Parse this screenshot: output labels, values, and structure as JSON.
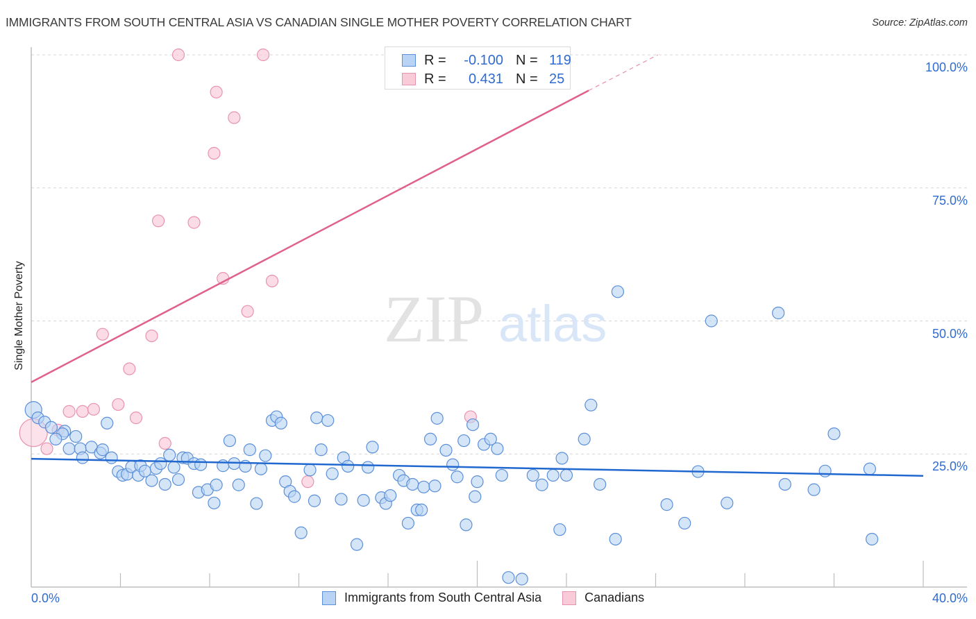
{
  "title": "IMMIGRANTS FROM SOUTH CENTRAL ASIA VS CANADIAN SINGLE MOTHER POVERTY CORRELATION CHART",
  "source": "Source: ZipAtlas.com",
  "watermark": {
    "zip": "ZIP",
    "atlas": "atlas"
  },
  "legend_box": {
    "rows": [
      {
        "r_label": "R =",
        "r_value": "-0.100",
        "n_label": "N =",
        "n_value": "119"
      },
      {
        "r_label": "R =",
        "r_value": "0.431",
        "n_label": "N =",
        "n_value": "25"
      }
    ]
  },
  "bottom_legend": [
    {
      "label": "Immigrants from South Central Asia"
    },
    {
      "label": "Canadians"
    }
  ],
  "colors": {
    "blue_fill": "#b9d3f4",
    "blue_stroke": "#5b8fd9",
    "blue_line": "#2068d0",
    "pink_fill": "#f9cad8",
    "pink_stroke": "#e893ae",
    "pink_line": "#e0608a",
    "axis_label": "#2f6bd0"
  },
  "chart_data": {
    "type": "scatter",
    "title": "IMMIGRANTS FROM SOUTH CENTRAL ASIA VS CANADIAN SINGLE MOTHER POVERTY CORRELATION CHART",
    "xlabel": "",
    "ylabel": "Single Mother Poverty",
    "xlim": [
      0,
      40
    ],
    "ylim": [
      0,
      100
    ],
    "x_tick_labels": [
      "0.0%",
      "40.0%"
    ],
    "y_ticks": [
      25,
      50,
      75,
      100
    ],
    "y_tick_labels": [
      "25.0%",
      "50.0%",
      "75.0%",
      "100.0%"
    ],
    "grid": "horizontal dashed",
    "legend": "bottom-center",
    "series": [
      {
        "name": "Immigrants from South Central Asia",
        "R": -0.1,
        "N": 119,
        "trend": {
          "x0": 0,
          "y0": 24.1,
          "x1": 40,
          "y1": 20.9
        },
        "points": [
          [
            0.1,
            33.3
          ],
          [
            0.3,
            31.8
          ],
          [
            0.6,
            31.0
          ],
          [
            0.9,
            30.0
          ],
          [
            1.5,
            29.3
          ],
          [
            1.4,
            28.8
          ],
          [
            1.1,
            27.8
          ],
          [
            1.7,
            26.0
          ],
          [
            2.0,
            28.3
          ],
          [
            2.2,
            26.0
          ],
          [
            2.3,
            24.3
          ],
          [
            2.7,
            26.3
          ],
          [
            3.1,
            25.2
          ],
          [
            3.2,
            25.8
          ],
          [
            3.4,
            30.8
          ],
          [
            3.6,
            24.3
          ],
          [
            3.9,
            21.7
          ],
          [
            4.1,
            21.0
          ],
          [
            4.3,
            21.2
          ],
          [
            4.5,
            22.6
          ],
          [
            4.8,
            21.0
          ],
          [
            4.9,
            22.8
          ],
          [
            5.1,
            21.8
          ],
          [
            5.4,
            20.0
          ],
          [
            5.6,
            22.3
          ],
          [
            5.8,
            23.2
          ],
          [
            6.0,
            19.3
          ],
          [
            6.2,
            24.8
          ],
          [
            6.4,
            22.5
          ],
          [
            6.6,
            20.2
          ],
          [
            6.8,
            24.3
          ],
          [
            7.0,
            24.2
          ],
          [
            7.3,
            23.2
          ],
          [
            7.5,
            17.8
          ],
          [
            7.6,
            23.0
          ],
          [
            7.9,
            18.3
          ],
          [
            8.2,
            15.8
          ],
          [
            8.3,
            19.2
          ],
          [
            8.6,
            22.8
          ],
          [
            8.9,
            27.5
          ],
          [
            9.1,
            23.2
          ],
          [
            9.3,
            19.2
          ],
          [
            9.6,
            22.7
          ],
          [
            9.8,
            25.8
          ],
          [
            10.1,
            15.7
          ],
          [
            10.3,
            22.2
          ],
          [
            10.5,
            24.7
          ],
          [
            10.8,
            31.3
          ],
          [
            11.0,
            32.0
          ],
          [
            11.2,
            30.8
          ],
          [
            11.4,
            19.8
          ],
          [
            11.6,
            18.0
          ],
          [
            11.8,
            17.0
          ],
          [
            12.1,
            10.2
          ],
          [
            12.5,
            22.0
          ],
          [
            12.7,
            16.2
          ],
          [
            12.8,
            31.8
          ],
          [
            13.0,
            25.8
          ],
          [
            13.3,
            31.3
          ],
          [
            13.5,
            21.3
          ],
          [
            13.9,
            16.5
          ],
          [
            14.0,
            24.3
          ],
          [
            14.2,
            22.7
          ],
          [
            14.6,
            8.0
          ],
          [
            14.9,
            16.3
          ],
          [
            15.1,
            22.5
          ],
          [
            15.3,
            26.3
          ],
          [
            15.7,
            16.8
          ],
          [
            15.9,
            15.7
          ],
          [
            16.1,
            17.2
          ],
          [
            16.5,
            21.0
          ],
          [
            16.7,
            20.0
          ],
          [
            16.9,
            12.0
          ],
          [
            17.1,
            19.3
          ],
          [
            17.3,
            14.5
          ],
          [
            17.5,
            14.5
          ],
          [
            17.6,
            18.8
          ],
          [
            17.9,
            27.8
          ],
          [
            18.1,
            19.0
          ],
          [
            18.2,
            31.7
          ],
          [
            18.6,
            25.7
          ],
          [
            18.9,
            23.0
          ],
          [
            19.1,
            20.7
          ],
          [
            19.4,
            27.5
          ],
          [
            19.5,
            11.7
          ],
          [
            19.8,
            30.5
          ],
          [
            19.9,
            17.0
          ],
          [
            20.0,
            19.8
          ],
          [
            20.3,
            26.8
          ],
          [
            20.6,
            27.8
          ],
          [
            20.9,
            26.0
          ],
          [
            21.1,
            21.0
          ],
          [
            21.4,
            1.8
          ],
          [
            22.0,
            1.5
          ],
          [
            22.5,
            21.0
          ],
          [
            22.9,
            19.2
          ],
          [
            23.4,
            21.0
          ],
          [
            23.7,
            10.8
          ],
          [
            23.8,
            24.2
          ],
          [
            24.0,
            21.0
          ],
          [
            24.8,
            27.8
          ],
          [
            25.1,
            34.2
          ],
          [
            25.5,
            19.3
          ],
          [
            26.2,
            9.0
          ],
          [
            26.3,
            55.5
          ],
          [
            28.5,
            15.5
          ],
          [
            29.3,
            12.0
          ],
          [
            29.9,
            21.7
          ],
          [
            30.5,
            50.0
          ],
          [
            31.2,
            15.8
          ],
          [
            33.5,
            51.5
          ],
          [
            33.8,
            19.3
          ],
          [
            35.1,
            18.3
          ],
          [
            35.6,
            21.8
          ],
          [
            36.0,
            28.8
          ],
          [
            37.6,
            22.2
          ],
          [
            37.7,
            9.0
          ]
        ]
      },
      {
        "name": "Canadians",
        "R": 0.431,
        "N": 25,
        "trend": {
          "x0": 0,
          "y0": 38.5,
          "x1": 25,
          "y1": 93.3,
          "dashed_to": {
            "x": 28.1,
            "y": 100
          }
        },
        "points": [
          [
            0.1,
            29.0
          ],
          [
            0.7,
            26.0
          ],
          [
            1.2,
            29.5
          ],
          [
            1.7,
            33.0
          ],
          [
            2.3,
            33.0
          ],
          [
            2.8,
            33.4
          ],
          [
            3.2,
            47.5
          ],
          [
            3.9,
            34.3
          ],
          [
            4.4,
            41.0
          ],
          [
            4.7,
            31.8
          ],
          [
            5.4,
            47.2
          ],
          [
            6.0,
            27.0
          ],
          [
            5.7,
            68.8
          ],
          [
            6.6,
            100.0
          ],
          [
            7.3,
            68.5
          ],
          [
            8.2,
            81.5
          ],
          [
            8.3,
            93.0
          ],
          [
            8.6,
            58.0
          ],
          [
            9.1,
            88.2
          ],
          [
            9.7,
            51.8
          ],
          [
            10.4,
            100.0
          ],
          [
            10.8,
            57.5
          ],
          [
            12.4,
            19.8
          ],
          [
            19.7,
            32.0
          ],
          [
            20.8,
            100.0
          ]
        ]
      }
    ]
  }
}
